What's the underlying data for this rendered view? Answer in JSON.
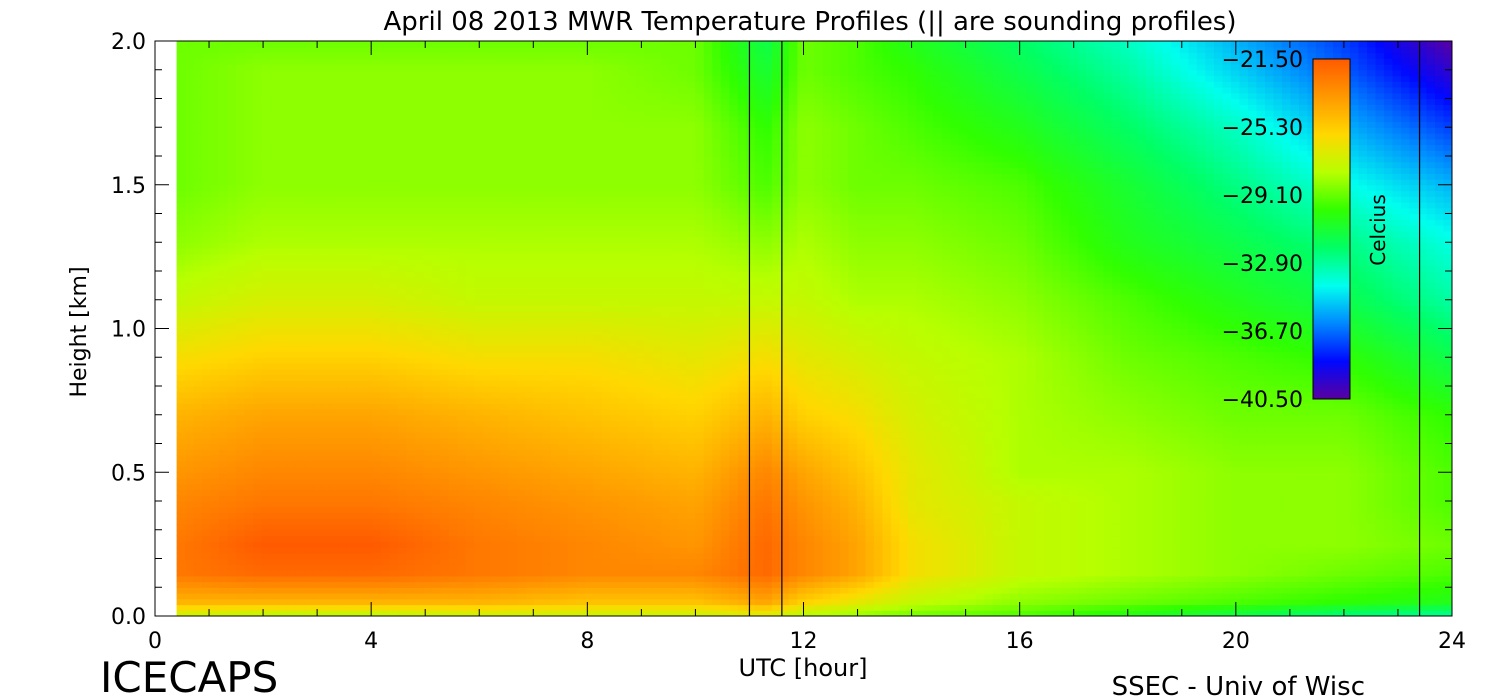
{
  "chart_data": {
    "type": "heatmap",
    "title": "April 08 2013 MWR Temperature Profiles (|| are sounding profiles)",
    "xlabel": "UTC [hour]",
    "ylabel": "Height [km]",
    "xlim": [
      0,
      24
    ],
    "ylim": [
      0,
      2.0
    ],
    "x_ticks": [
      "0",
      "4",
      "8",
      "12",
      "16",
      "20",
      "24"
    ],
    "y_ticks": [
      "0.0",
      "0.5",
      "1.0",
      "1.5",
      "2.0"
    ],
    "data_start_hour": 0.4,
    "sounding_times_hour": [
      11.0,
      11.6,
      23.4
    ],
    "temperature_grid": {
      "units": "Celcius",
      "x_hours": [
        0.4,
        2,
        4,
        6,
        8,
        10,
        11.3,
        12,
        13,
        14,
        16,
        18,
        20,
        22,
        24
      ],
      "y_km": [
        0.0,
        0.05,
        0.15,
        0.25,
        0.4,
        0.5,
        0.7,
        0.9,
        1.1,
        1.3,
        1.5,
        1.7,
        1.9,
        2.0
      ],
      "values": [
        [
          -27.5,
          -28.0,
          -28.0,
          -27.5,
          -27.5,
          -27.5,
          -27.0,
          -28.0,
          -28.5,
          -29.0,
          -29.5,
          -30.5,
          -31.5,
          -32.5,
          -33.0
        ],
        [
          -24.5,
          -24.5,
          -24.5,
          -24.5,
          -25.0,
          -25.0,
          -24.0,
          -25.5,
          -26.5,
          -27.5,
          -28.5,
          -29.0,
          -29.5,
          -30.0,
          -30.5
        ],
        [
          -22.5,
          -22.0,
          -22.0,
          -22.5,
          -23.0,
          -23.0,
          -22.0,
          -23.0,
          -24.0,
          -26.0,
          -27.5,
          -28.0,
          -28.5,
          -29.0,
          -29.5
        ],
        [
          -22.5,
          -21.5,
          -21.5,
          -22.5,
          -23.0,
          -23.5,
          -22.0,
          -23.0,
          -24.0,
          -26.0,
          -27.5,
          -28.0,
          -28.5,
          -28.5,
          -29.0
        ],
        [
          -23.0,
          -22.5,
          -22.5,
          -23.0,
          -23.5,
          -24.0,
          -22.5,
          -23.5,
          -24.5,
          -26.5,
          -27.5,
          -28.0,
          -28.5,
          -28.5,
          -29.5
        ],
        [
          -23.5,
          -23.0,
          -23.0,
          -23.5,
          -24.0,
          -24.5,
          -23.0,
          -24.0,
          -25.0,
          -26.5,
          -28.0,
          -28.0,
          -28.5,
          -28.5,
          -29.5
        ],
        [
          -24.5,
          -24.0,
          -24.0,
          -24.5,
          -25.0,
          -25.5,
          -24.5,
          -25.5,
          -26.0,
          -27.0,
          -28.0,
          -28.5,
          -29.0,
          -29.0,
          -30.0
        ],
        [
          -26.0,
          -25.5,
          -25.5,
          -26.0,
          -26.0,
          -26.5,
          -26.0,
          -26.5,
          -27.0,
          -27.5,
          -28.0,
          -29.0,
          -29.5,
          -30.0,
          -31.5
        ],
        [
          -27.5,
          -27.0,
          -27.0,
          -27.5,
          -27.5,
          -27.5,
          -27.5,
          -27.5,
          -28.0,
          -28.0,
          -28.5,
          -29.5,
          -30.5,
          -31.5,
          -33.0
        ],
        [
          -28.5,
          -28.0,
          -28.0,
          -28.0,
          -28.0,
          -28.0,
          -28.5,
          -28.0,
          -28.5,
          -28.5,
          -29.0,
          -30.5,
          -31.5,
          -32.5,
          -34.0
        ],
        [
          -29.0,
          -28.5,
          -28.5,
          -28.5,
          -28.5,
          -28.5,
          -29.5,
          -28.5,
          -29.0,
          -29.0,
          -29.5,
          -31.0,
          -32.5,
          -34.0,
          -35.5
        ],
        [
          -29.0,
          -28.5,
          -28.5,
          -28.5,
          -28.5,
          -28.5,
          -30.0,
          -28.5,
          -29.0,
          -29.5,
          -30.5,
          -32.0,
          -33.5,
          -35.5,
          -37.5
        ],
        [
          -29.0,
          -28.5,
          -28.5,
          -28.5,
          -28.5,
          -29.0,
          -31.0,
          -29.0,
          -29.5,
          -30.0,
          -31.5,
          -33.0,
          -35.0,
          -37.0,
          -39.5
        ],
        [
          -29.0,
          -29.0,
          -29.0,
          -29.0,
          -29.0,
          -29.0,
          -31.5,
          -29.0,
          -29.5,
          -30.5,
          -32.0,
          -33.5,
          -35.5,
          -37.5,
          -40.5
        ]
      ]
    },
    "colorbar": {
      "label": "Celcius",
      "range": [
        -40.5,
        -21.5
      ],
      "tick_labels": [
        "-21.50",
        "-25.30",
        "-29.10",
        "-32.90",
        "-36.70",
        "-40.50"
      ],
      "colors": [
        "#ff5a00",
        "#ff9900",
        "#ffd800",
        "#b8ff00",
        "#30ff00",
        "#00ff66",
        "#00ffee",
        "#0088ff",
        "#0008ff",
        "#5a00a0"
      ]
    }
  },
  "footer": {
    "left": "ICECAPS",
    "right": "SSEC - Univ of Wisc"
  }
}
